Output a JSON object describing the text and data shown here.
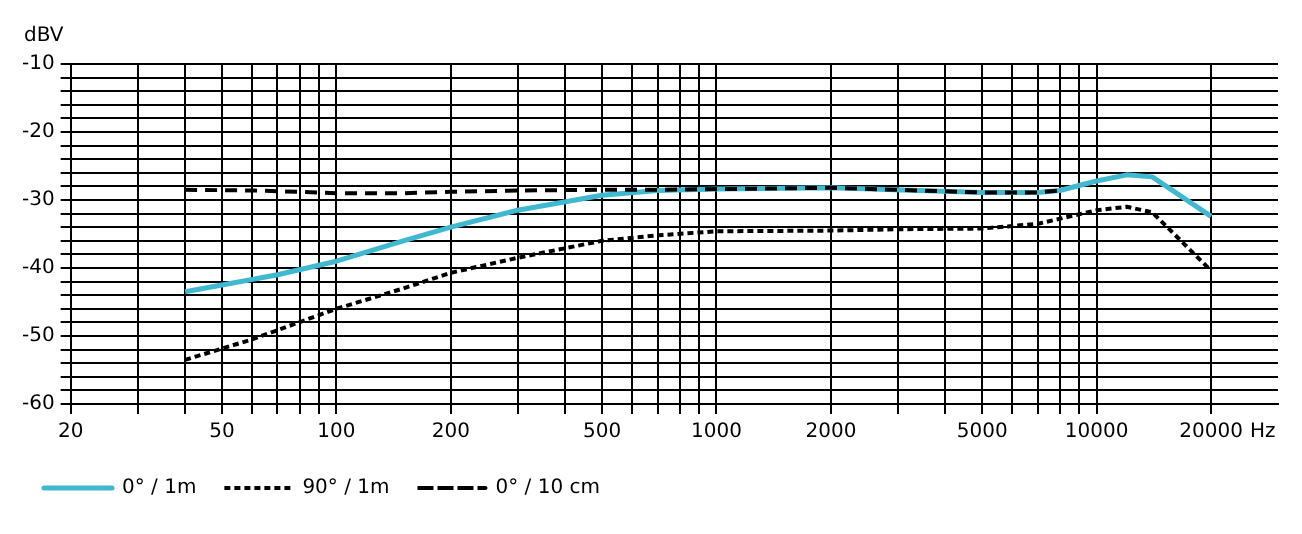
{
  "chart_data": {
    "type": "line",
    "xlabel": "Hz",
    "ylabel": "dBV",
    "log": "x",
    "grid": true,
    "legend": "bottom",
    "marker": "none",
    "xlim": [
      20,
      30000
    ],
    "ylim": [
      -60,
      -10
    ],
    "xticks": [
      20,
      {
        "value": 30,
        "label": null
      },
      {
        "value": 40,
        "label": null
      },
      50,
      {
        "value": 60,
        "label": null
      },
      {
        "value": 70,
        "label": null
      },
      {
        "value": 80,
        "label": null
      },
      {
        "value": 90,
        "label": null
      },
      100,
      200,
      {
        "value": 300,
        "label": null
      },
      {
        "value": 400,
        "label": null
      },
      500,
      {
        "value": 600,
        "label": null
      },
      {
        "value": 700,
        "label": null
      },
      {
        "value": 800,
        "label": null
      },
      {
        "value": 900,
        "label": null
      },
      1000,
      2000,
      {
        "value": 3000,
        "label": null
      },
      {
        "value": 4000,
        "label": null
      },
      5000,
      {
        "value": 6000,
        "label": null
      },
      {
        "value": 7000,
        "label": null
      },
      {
        "value": 8000,
        "label": null
      },
      {
        "value": 9000,
        "label": null
      },
      10000,
      20000
    ],
    "yticks": [
      -60,
      {
        "value": -58,
        "label": null
      },
      {
        "value": -56,
        "label": null
      },
      {
        "value": -54,
        "label": null
      },
      {
        "value": -52,
        "label": null
      },
      -50,
      {
        "value": -48,
        "label": null
      },
      {
        "value": -46,
        "label": null
      },
      {
        "value": -44,
        "label": null
      },
      {
        "value": -42,
        "label": null
      },
      -40,
      {
        "value": -38,
        "label": null
      },
      {
        "value": -36,
        "label": null
      },
      {
        "value": -34,
        "label": null
      },
      {
        "value": -32,
        "label": null
      },
      -30,
      {
        "value": -28,
        "label": null
      },
      {
        "value": -26,
        "label": null
      },
      {
        "value": -24,
        "label": null
      },
      {
        "value": -22,
        "label": null
      },
      -20,
      {
        "value": -18,
        "label": null
      },
      {
        "value": -16,
        "label": null
      },
      {
        "value": -14,
        "label": null
      },
      {
        "value": -12,
        "label": null
      },
      -10
    ],
    "series": [
      {
        "name": "0° / 10 cm",
        "color": "#000000",
        "line_style": "dashed",
        "x": [
          40,
          60,
          80,
          100,
          150,
          200,
          300,
          500,
          700,
          1000,
          2000,
          5000,
          7000,
          8000
        ],
        "values": [
          -28.5,
          -28.6,
          -28.8,
          -29,
          -29,
          -28.8,
          -28.6,
          -28.5,
          -28.5,
          -28.4,
          -28.2,
          -28.9,
          -28.9,
          -28.6
        ]
      },
      {
        "name": "0° / 1m",
        "color": "#3fb8d0",
        "line_style": "solid",
        "x": [
          40,
          50,
          70,
          100,
          150,
          200,
          300,
          500,
          700,
          1000,
          2000,
          5000,
          7000,
          8000,
          10000,
          12000,
          14000,
          20000
        ],
        "values": [
          -43.5,
          -42.5,
          -41,
          -39,
          -36,
          -34,
          -31.5,
          -29.3,
          -28.6,
          -28.4,
          -28.2,
          -28.9,
          -28.9,
          -28.6,
          -27.2,
          -26.3,
          -26.6,
          -32.4
        ]
      },
      {
        "name": "90° / 1m",
        "color": "#000000",
        "line_style": "dotted",
        "x": [
          40,
          60,
          100,
          150,
          200,
          300,
          500,
          700,
          1000,
          2000,
          3000,
          5000,
          7000,
          10000,
          12000,
          14000,
          20000
        ],
        "values": [
          -53.5,
          -50.5,
          -46,
          -43,
          -40.7,
          -38.5,
          -36,
          -35.2,
          -34.6,
          -34.5,
          -34.3,
          -34.2,
          -33.5,
          -31.5,
          -31,
          -31.8,
          -40.4
        ]
      }
    ]
  }
}
